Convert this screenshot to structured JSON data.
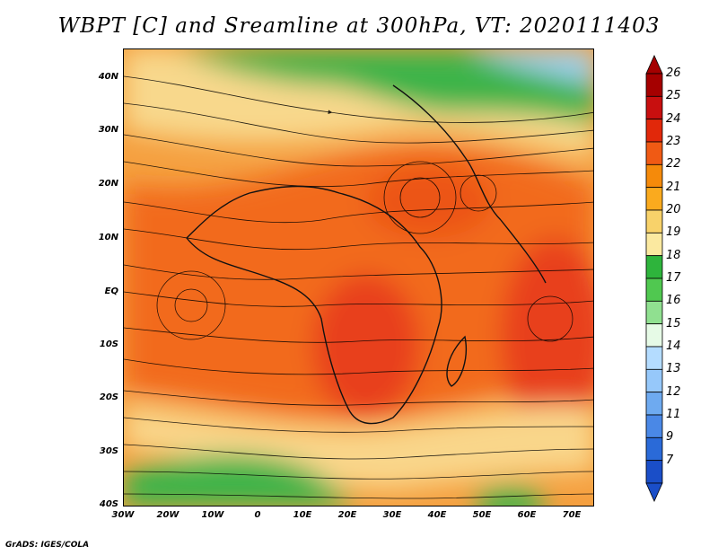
{
  "title": "WBPT [C] and Sreamline at 300hPa, VT: 2020111403",
  "footer": "GrADS: IGES/COLA",
  "map": {
    "variable": "WBPT [C]",
    "level": "300hPa",
    "valid_time": "2020111403",
    "lon_range": [
      -30,
      75
    ],
    "lat_range": [
      -40,
      45
    ],
    "lat_labels": [
      "40N",
      "30N",
      "20N",
      "10N",
      "EQ",
      "10S",
      "20S",
      "30S",
      "40S"
    ],
    "lon_labels": [
      "30W",
      "20W",
      "10W",
      "0",
      "10E",
      "20E",
      "30E",
      "40E",
      "50E",
      "60E",
      "70E"
    ]
  },
  "colorbar": {
    "labels": [
      "26",
      "25",
      "24",
      "23",
      "22",
      "21",
      "20",
      "19",
      "18",
      "17",
      "16",
      "15",
      "14",
      "13",
      "12",
      "11",
      "9",
      "7"
    ],
    "colors": [
      "#a50000",
      "#c80f0f",
      "#e1280a",
      "#f05a14",
      "#f58a0a",
      "#faaa1e",
      "#f8d26a",
      "#fbe9a0",
      "#2eb43c",
      "#50c850",
      "#90e090",
      "#e6fae6",
      "#b4dcff",
      "#96c8fa",
      "#6eaaf0",
      "#4a88e6",
      "#2a6ad8",
      "#1a4ec8"
    ]
  }
}
